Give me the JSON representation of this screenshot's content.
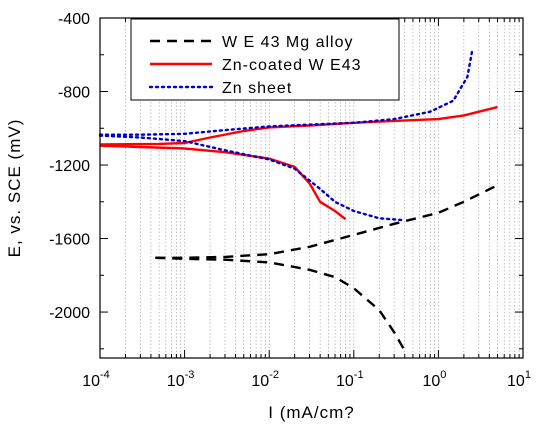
{
  "chart_data": {
    "type": "line",
    "xlabel": "I (mA/cm?",
    "ylabel": "E, vs. SCE (mV)",
    "x_scale": "log",
    "xlim": [
      0.0001,
      10
    ],
    "ylim": [
      -2250,
      -400
    ],
    "grid": "vertical-minor",
    "legend_position": "top-left",
    "x_ticks": [
      {
        "value": 0.0001,
        "base": "10",
        "exp": "-4"
      },
      {
        "value": 0.001,
        "base": "10",
        "exp": "-3"
      },
      {
        "value": 0.01,
        "base": "10",
        "exp": "-2"
      },
      {
        "value": 0.1,
        "base": "10",
        "exp": "-1"
      },
      {
        "value": 1,
        "base": "10",
        "exp": "0"
      },
      {
        "value": 10,
        "base": "10",
        "exp": "1"
      }
    ],
    "y_ticks": [
      {
        "value": -400,
        "label": "-400"
      },
      {
        "value": -800,
        "label": "-800"
      },
      {
        "value": -1200,
        "label": "-1200"
      },
      {
        "value": -1600,
        "label": "-1600"
      },
      {
        "value": -2000,
        "label": "-2000"
      }
    ],
    "series": [
      {
        "name": "W E 43 Mg alloy",
        "color": "#000000",
        "style": "dashed",
        "branches": [
          [
            [
              0.00045,
              -1705
            ],
            [
              0.001,
              -1705
            ],
            [
              0.003,
              -1700
            ],
            [
              0.01,
              -1685
            ],
            [
              0.03,
              -1645
            ],
            [
              0.1,
              -1580
            ],
            [
              0.3,
              -1520
            ],
            [
              1,
              -1460
            ],
            [
              2,
              -1400
            ],
            [
              5,
              -1310
            ]
          ],
          [
            [
              0.00045,
              -1705
            ],
            [
              0.001,
              -1710
            ],
            [
              0.003,
              -1715
            ],
            [
              0.01,
              -1730
            ],
            [
              0.03,
              -1770
            ],
            [
              0.06,
              -1810
            ],
            [
              0.1,
              -1870
            ],
            [
              0.2,
              -1990
            ],
            [
              0.3,
              -2110
            ],
            [
              0.4,
              -2210
            ]
          ]
        ]
      },
      {
        "name": "Zn-coated W E43",
        "color": "#ff0000",
        "style": "solid",
        "branches": [
          [
            [
              0.0001,
              -1088
            ],
            [
              0.0005,
              -1085
            ],
            [
              0.001,
              -1080
            ],
            [
              0.002,
              -1050
            ],
            [
              0.005,
              -1015
            ],
            [
              0.01,
              -995
            ],
            [
              0.03,
              -985
            ],
            [
              0.1,
              -970
            ],
            [
              0.3,
              -960
            ],
            [
              1,
              -950
            ],
            [
              2,
              -930
            ],
            [
              5,
              -885
            ]
          ],
          [
            [
              0.0001,
              -1095
            ],
            [
              0.0003,
              -1102
            ],
            [
              0.001,
              -1110
            ],
            [
              0.003,
              -1130
            ],
            [
              0.01,
              -1165
            ],
            [
              0.02,
              -1210
            ],
            [
              0.03,
              -1300
            ],
            [
              0.04,
              -1400
            ],
            [
              0.06,
              -1450
            ],
            [
              0.08,
              -1495
            ]
          ]
        ]
      },
      {
        "name": "Zn sheet",
        "color": "#0000cc",
        "style": "dotted",
        "branches": [
          [
            [
              0.0001,
              -1035
            ],
            [
              0.0003,
              -1035
            ],
            [
              0.001,
              -1030
            ],
            [
              0.003,
              -1010
            ],
            [
              0.01,
              -990
            ],
            [
              0.03,
              -980
            ],
            [
              0.1,
              -970
            ],
            [
              0.3,
              -950
            ],
            [
              0.8,
              -910
            ],
            [
              1.5,
              -850
            ],
            [
              2.2,
              -720
            ],
            [
              2.5,
              -580
            ]
          ],
          [
            [
              0.0001,
              -1040
            ],
            [
              0.0003,
              -1050
            ],
            [
              0.001,
              -1070
            ],
            [
              0.003,
              -1120
            ],
            [
              0.01,
              -1170
            ],
            [
              0.02,
              -1220
            ],
            [
              0.04,
              -1330
            ],
            [
              0.06,
              -1400
            ],
            [
              0.1,
              -1450
            ],
            [
              0.2,
              -1490
            ],
            [
              0.4,
              -1500
            ]
          ]
        ]
      }
    ]
  }
}
